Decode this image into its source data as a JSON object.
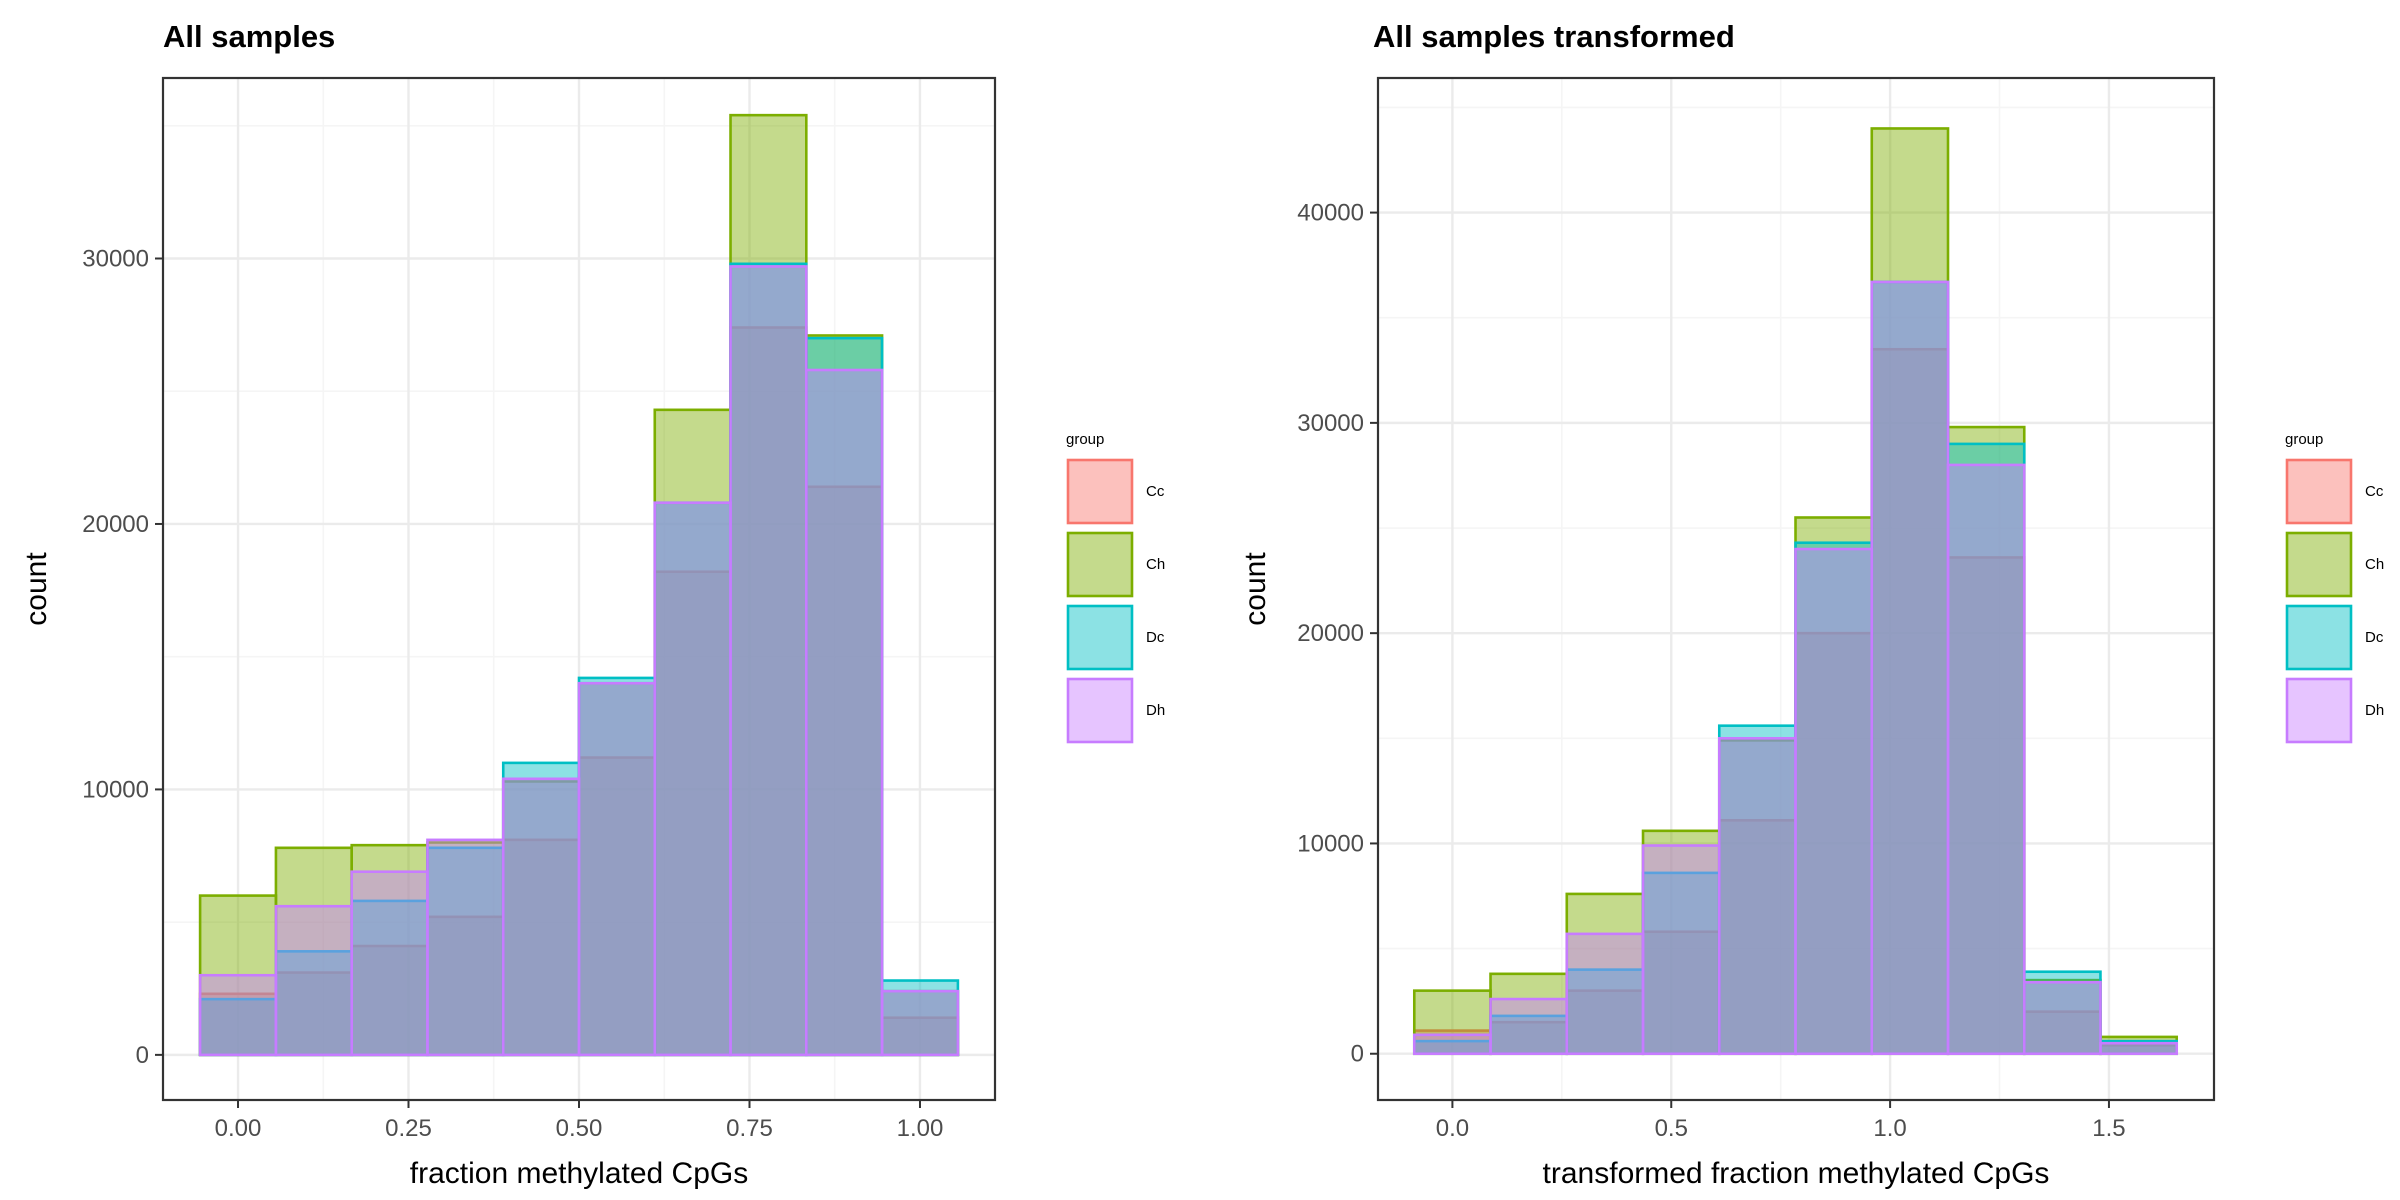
{
  "chart_data": [
    {
      "type": "histogram",
      "title": "All samples",
      "xlabel": "fraction methylated CpGs",
      "ylabel": "count",
      "xlim": [
        -0.11,
        1.11
      ],
      "ylim": [
        -1700,
        36800
      ],
      "x_ticks": [
        0.0,
        0.25,
        0.5,
        0.75,
        1.0
      ],
      "x_tick_labels": [
        "0.00",
        "0.25",
        "0.50",
        "0.75",
        "1.00"
      ],
      "y_ticks": [
        0,
        10000,
        20000,
        30000
      ],
      "y_tick_labels": [
        "0",
        "10000",
        "20000",
        "30000"
      ],
      "grid": true,
      "bin_edges": [
        -0.0556,
        0.0556,
        0.1667,
        0.2778,
        0.3889,
        0.5,
        0.6111,
        0.7222,
        0.8333,
        0.9444,
        1.0556
      ],
      "series": [
        {
          "name": "Cc",
          "values": [
            2300,
            3100,
            4100,
            5200,
            8100,
            11200,
            18200,
            27400,
            21400,
            1400
          ]
        },
        {
          "name": "Ch",
          "values": [
            6000,
            7800,
            7900,
            8000,
            10300,
            14000,
            24300,
            35400,
            27100,
            2400
          ]
        },
        {
          "name": "Dc",
          "values": [
            2100,
            3900,
            5800,
            7800,
            11000,
            14200,
            20800,
            29800,
            27000,
            2800
          ]
        },
        {
          "name": "Dh",
          "values": [
            3000,
            5600,
            6900,
            8100,
            10400,
            14000,
            20800,
            29700,
            25800,
            2400
          ]
        }
      ],
      "legend": {
        "title": "group",
        "position": "right"
      }
    },
    {
      "type": "histogram",
      "title": "All samples transformed",
      "xlabel": "transformed fraction methylated CpGs",
      "ylabel": "count",
      "xlim": [
        -0.17,
        1.74
      ],
      "ylim": [
        -2200,
        46400
      ],
      "x_ticks": [
        0.0,
        0.5,
        1.0,
        1.5
      ],
      "x_tick_labels": [
        "0.0",
        "0.5",
        "1.0",
        "1.5"
      ],
      "y_ticks": [
        0,
        10000,
        20000,
        30000,
        40000
      ],
      "y_tick_labels": [
        "0",
        "10000",
        "20000",
        "30000",
        "40000"
      ],
      "grid": true,
      "bin_edges": [
        -0.0871,
        0.0871,
        0.2613,
        0.4355,
        0.6097,
        0.7839,
        0.9581,
        1.1323,
        1.3065,
        1.4806,
        1.6548
      ],
      "series": [
        {
          "name": "Cc",
          "values": [
            1100,
            1500,
            3000,
            5800,
            11100,
            20000,
            33500,
            23600,
            2000,
            400
          ]
        },
        {
          "name": "Ch",
          "values": [
            3000,
            3800,
            7600,
            10600,
            14900,
            25500,
            44000,
            29800,
            3500,
            800
          ]
        },
        {
          "name": "Dc",
          "values": [
            600,
            1800,
            4000,
            8600,
            15600,
            24300,
            36700,
            29000,
            3900,
            600
          ]
        },
        {
          "name": "Dh",
          "values": [
            900,
            2600,
            5700,
            9900,
            15000,
            24000,
            36700,
            28000,
            3400,
            500
          ]
        }
      ],
      "legend": {
        "title": "group",
        "position": "right"
      }
    }
  ],
  "colors": {
    "Cc": {
      "fill": "#F8766D",
      "stroke": "#F8766D"
    },
    "Ch": {
      "fill": "#7CAE00",
      "stroke": "#7CAE00"
    },
    "Dc": {
      "fill": "#00BFC4",
      "stroke": "#00BFC4"
    },
    "Dh": {
      "fill": "#C77CFF",
      "stroke": "#C77CFF"
    },
    "grid_major": "#EBEBEB",
    "grid_minor": "#F5F5F5",
    "panel_border": "#333333"
  }
}
